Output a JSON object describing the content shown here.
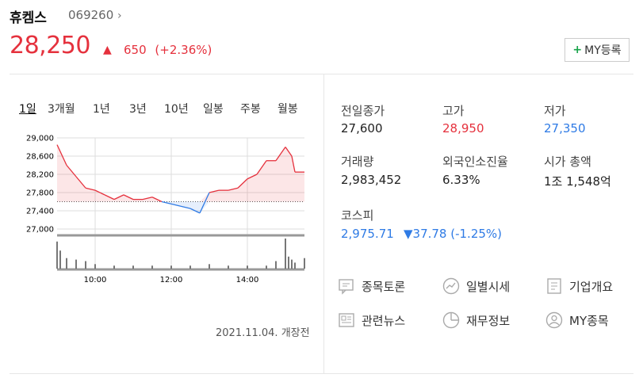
{
  "stock": {
    "name": "휴켐스",
    "code": "069260",
    "price": "28,250",
    "change": "650",
    "change_pct": "(+2.36%)",
    "my_button": "MY등록"
  },
  "tabs": [
    "1일",
    "3개월",
    "1년",
    "3년",
    "10년",
    "일봉",
    "주봉",
    "월봉"
  ],
  "stats": {
    "prev_close_label": "전일종가",
    "prev_close": "27,600",
    "high_label": "고가",
    "high": "28,950",
    "low_label": "저가",
    "low": "27,350",
    "volume_label": "거래량",
    "volume": "2,983,452",
    "foreign_label": "외국인소진율",
    "foreign": "6.33%",
    "mcap_label": "시가 총액",
    "mcap": "1조 1,548억",
    "index_label": "코스피",
    "index_value": "2,975.71",
    "index_change": "▼37.78 (-1.25%)"
  },
  "links": [
    {
      "label": "종목토론",
      "icon": "chat-icon"
    },
    {
      "label": "일별시세",
      "icon": "trend-icon"
    },
    {
      "label": "기업개요",
      "icon": "document-icon"
    },
    {
      "label": "관련뉴스",
      "icon": "news-icon"
    },
    {
      "label": "재무정보",
      "icon": "pie-icon"
    },
    {
      "label": "MY종목",
      "icon": "user-icon"
    }
  ],
  "date_note": "2021.11.04. 개장전",
  "colors": {
    "up": "#e5313d",
    "down": "#2f7be5",
    "grid": "#dddddd"
  },
  "chart_data": {
    "type": "line",
    "title": "",
    "y_ticks": [
      "29,000",
      "28,600",
      "28,200",
      "27,800",
      "27,400",
      "27,000"
    ],
    "ylim": [
      27000,
      29000
    ],
    "x_ticks": [
      "10:00",
      "12:00",
      "14:00"
    ],
    "xlim": [
      "09:00",
      "15:30"
    ],
    "baseline": 27600,
    "series": [
      {
        "x": [
          "09:00",
          "09:15",
          "09:30",
          "09:45",
          "10:00",
          "10:15",
          "10:30",
          "10:45",
          "11:00",
          "11:15",
          "11:30",
          "11:45",
          "12:00",
          "12:15",
          "12:30",
          "12:45",
          "13:00",
          "13:15",
          "13:30",
          "13:45",
          "14:00",
          "14:15",
          "14:30",
          "14:45",
          "15:00",
          "15:10",
          "15:15",
          "15:30"
        ],
        "values": [
          28850,
          28400,
          28150,
          27900,
          27850,
          27750,
          27650,
          27750,
          27650,
          27650,
          27700,
          27600,
          27550,
          27500,
          27450,
          27350,
          27800,
          27850,
          27850,
          27900,
          28100,
          28200,
          28500,
          28500,
          28800,
          28600,
          28250,
          28250
        ]
      }
    ],
    "volume": {
      "x": [
        "09:00",
        "09:05",
        "09:15",
        "09:30",
        "09:45",
        "10:00",
        "10:30",
        "11:00",
        "11:30",
        "12:00",
        "12:30",
        "13:00",
        "13:30",
        "14:00",
        "14:30",
        "14:45",
        "15:00",
        "15:05",
        "15:10",
        "15:15",
        "15:30"
      ],
      "values": [
        0.9,
        0.6,
        0.35,
        0.3,
        0.25,
        0.15,
        0.1,
        0.1,
        0.1,
        0.1,
        0.1,
        0.15,
        0.1,
        0.1,
        0.1,
        0.25,
        1.0,
        0.4,
        0.3,
        0.2,
        0.35
      ]
    }
  }
}
